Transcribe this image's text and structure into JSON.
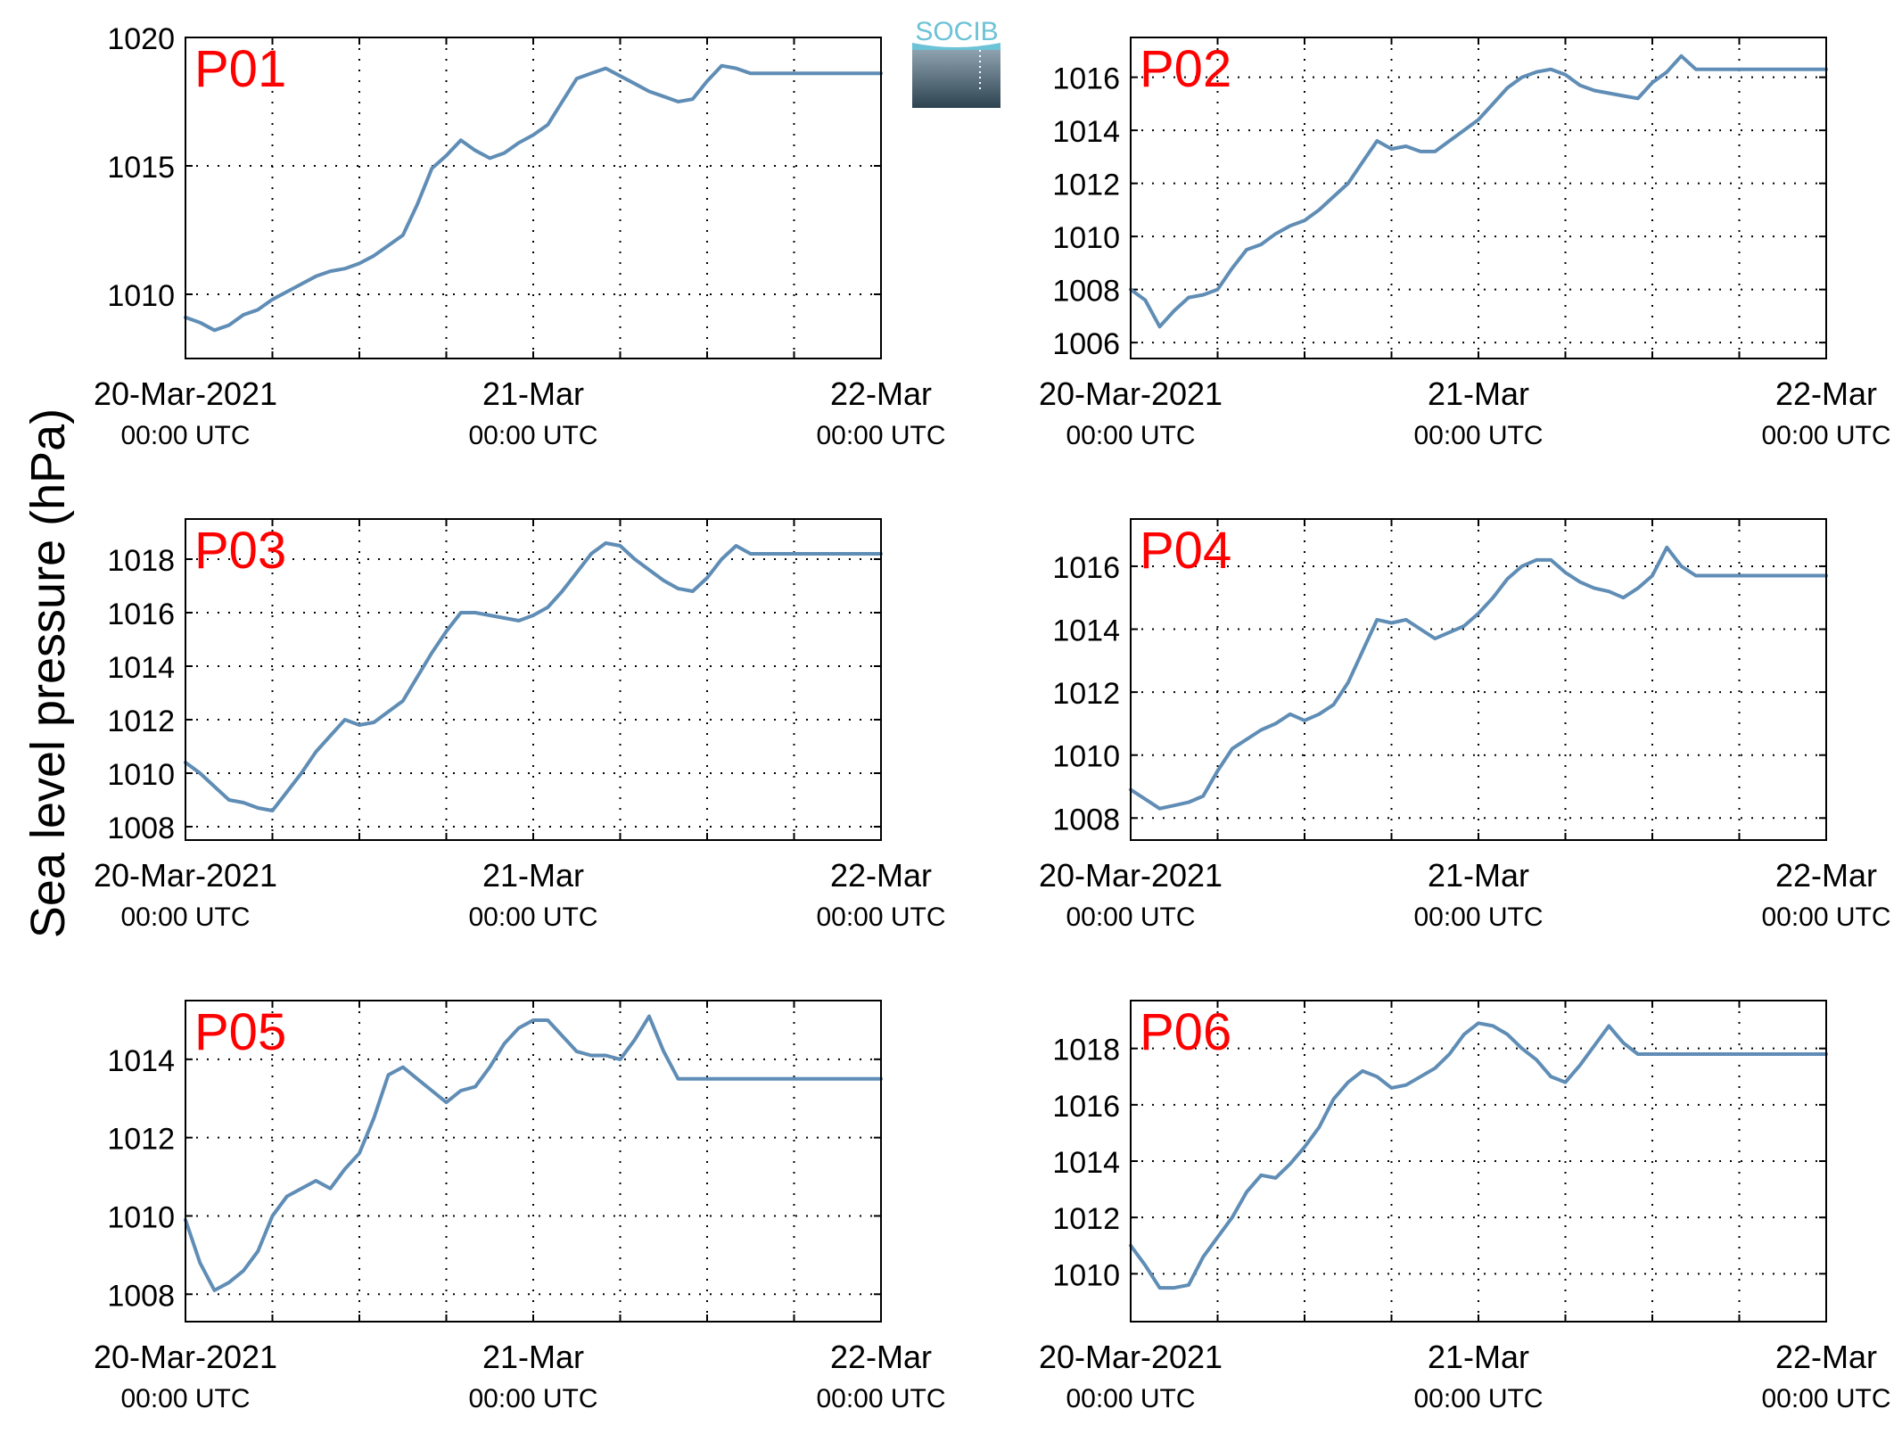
{
  "figure": {
    "ylabel": "Sea level pressure (hPa)",
    "logo_text": "SOCIB",
    "line_color": "#5f8db5",
    "label_color": "#ff0000"
  },
  "chart_data": [
    {
      "type": "line",
      "label": "P01",
      "grid": true,
      "xlim": [
        0,
        48
      ],
      "ylim": [
        1007.5,
        1020
      ],
      "yticks": [
        1010,
        1015,
        1020
      ],
      "xticks": [
        0,
        24,
        48
      ],
      "xtick_labels": [
        [
          "20-Mar-2021",
          "00:00 UTC"
        ],
        [
          "21-Mar",
          "00:00 UTC"
        ],
        [
          "22-Mar",
          "00:00 UTC"
        ]
      ],
      "x": [
        0,
        1,
        2,
        3,
        4,
        5,
        6,
        7,
        8,
        9,
        10,
        11,
        12,
        13,
        14,
        15,
        16,
        17,
        18,
        19,
        20,
        21,
        22,
        23,
        24,
        25,
        26,
        27,
        28,
        29,
        30,
        31,
        32,
        33,
        34,
        35,
        36,
        37,
        38,
        39,
        40,
        41,
        42,
        43,
        44,
        45,
        46,
        47,
        48
      ],
      "y": [
        1009.1,
        1008.9,
        1008.6,
        1008.8,
        1009.2,
        1009.4,
        1009.8,
        1010.1,
        1010.4,
        1010.7,
        1010.9,
        1011.0,
        1011.2,
        1011.5,
        1011.9,
        1012.3,
        1013.5,
        1014.9,
        1015.4,
        1016.0,
        1015.6,
        1015.3,
        1015.5,
        1015.9,
        1016.2,
        1016.6,
        1017.5,
        1018.4,
        1018.6,
        1018.8,
        1018.5,
        1018.2,
        1017.9,
        1017.7,
        1017.5,
        1017.6,
        1018.3,
        1018.9,
        1018.8,
        1018.6,
        1018.6,
        1018.6,
        1018.6,
        1018.6,
        1018.6,
        1018.6,
        1018.6,
        1018.6,
        1018.6
      ]
    },
    {
      "type": "line",
      "label": "P02",
      "grid": true,
      "xlim": [
        0,
        48
      ],
      "ylim": [
        1005.4,
        1017.5
      ],
      "yticks": [
        1006,
        1008,
        1010,
        1012,
        1014,
        1016
      ],
      "xticks": [
        0,
        24,
        48
      ],
      "xtick_labels": [
        [
          "20-Mar-2021",
          "00:00 UTC"
        ],
        [
          "21-Mar",
          "00:00 UTC"
        ],
        [
          "22-Mar",
          "00:00 UTC"
        ]
      ],
      "x": [
        0,
        1,
        2,
        3,
        4,
        5,
        6,
        7,
        8,
        9,
        10,
        11,
        12,
        13,
        14,
        15,
        16,
        17,
        18,
        19,
        20,
        21,
        22,
        23,
        24,
        25,
        26,
        27,
        28,
        29,
        30,
        31,
        32,
        33,
        34,
        35,
        36,
        37,
        38,
        39,
        40,
        41,
        42,
        43,
        44,
        45,
        46,
        47,
        48
      ],
      "y": [
        1008.0,
        1007.6,
        1006.6,
        1007.2,
        1007.7,
        1007.8,
        1008.0,
        1008.8,
        1009.5,
        1009.7,
        1010.1,
        1010.4,
        1010.6,
        1011.0,
        1011.5,
        1012.0,
        1012.8,
        1013.6,
        1013.3,
        1013.4,
        1013.2,
        1013.2,
        1013.6,
        1014.0,
        1014.4,
        1015.0,
        1015.6,
        1016.0,
        1016.2,
        1016.3,
        1016.1,
        1015.7,
        1015.5,
        1015.4,
        1015.3,
        1015.2,
        1015.8,
        1016.2,
        1016.8,
        1016.3,
        1016.3,
        1016.3,
        1016.3,
        1016.3,
        1016.3,
        1016.3,
        1016.3,
        1016.3,
        1016.3
      ]
    },
    {
      "type": "line",
      "label": "P03",
      "grid": true,
      "xlim": [
        0,
        48
      ],
      "ylim": [
        1007.5,
        1019.5
      ],
      "yticks": [
        1008,
        1010,
        1012,
        1014,
        1016,
        1018
      ],
      "xticks": [
        0,
        24,
        48
      ],
      "xtick_labels": [
        [
          "20-Mar-2021",
          "00:00 UTC"
        ],
        [
          "21-Mar",
          "00:00 UTC"
        ],
        [
          "22-Mar",
          "00:00 UTC"
        ]
      ],
      "x": [
        0,
        1,
        2,
        3,
        4,
        5,
        6,
        7,
        8,
        9,
        10,
        11,
        12,
        13,
        14,
        15,
        16,
        17,
        18,
        19,
        20,
        21,
        22,
        23,
        24,
        25,
        26,
        27,
        28,
        29,
        30,
        31,
        32,
        33,
        34,
        35,
        36,
        37,
        38,
        39,
        40,
        41,
        42,
        43,
        44,
        45,
        46,
        47,
        48
      ],
      "y": [
        1010.4,
        1010.0,
        1009.5,
        1009.0,
        1008.9,
        1008.7,
        1008.6,
        1009.3,
        1010.0,
        1010.8,
        1011.4,
        1012.0,
        1011.8,
        1011.9,
        1012.3,
        1012.7,
        1013.6,
        1014.5,
        1015.3,
        1016.0,
        1016.0,
        1015.9,
        1015.8,
        1015.7,
        1015.9,
        1016.2,
        1016.8,
        1017.5,
        1018.2,
        1018.6,
        1018.5,
        1018.0,
        1017.6,
        1017.2,
        1016.9,
        1016.8,
        1017.3,
        1018.0,
        1018.5,
        1018.2,
        1018.2,
        1018.2,
        1018.2,
        1018.2,
        1018.2,
        1018.2,
        1018.2,
        1018.2,
        1018.2
      ]
    },
    {
      "type": "line",
      "label": "P04",
      "grid": true,
      "xlim": [
        0,
        48
      ],
      "ylim": [
        1007.3,
        1017.5
      ],
      "yticks": [
        1008,
        1010,
        1012,
        1014,
        1016
      ],
      "xticks": [
        0,
        24,
        48
      ],
      "xtick_labels": [
        [
          "20-Mar-2021",
          "00:00 UTC"
        ],
        [
          "21-Mar",
          "00:00 UTC"
        ],
        [
          "22-Mar",
          "00:00 UTC"
        ]
      ],
      "x": [
        0,
        1,
        2,
        3,
        4,
        5,
        6,
        7,
        8,
        9,
        10,
        11,
        12,
        13,
        14,
        15,
        16,
        17,
        18,
        19,
        20,
        21,
        22,
        23,
        24,
        25,
        26,
        27,
        28,
        29,
        30,
        31,
        32,
        33,
        34,
        35,
        36,
        37,
        38,
        39,
        40,
        41,
        42,
        43,
        44,
        45,
        46,
        47,
        48
      ],
      "y": [
        1008.9,
        1008.6,
        1008.3,
        1008.4,
        1008.5,
        1008.7,
        1009.5,
        1010.2,
        1010.5,
        1010.8,
        1011.0,
        1011.3,
        1011.1,
        1011.3,
        1011.6,
        1012.3,
        1013.3,
        1014.3,
        1014.2,
        1014.3,
        1014.0,
        1013.7,
        1013.9,
        1014.1,
        1014.5,
        1015.0,
        1015.6,
        1016.0,
        1016.2,
        1016.2,
        1015.8,
        1015.5,
        1015.3,
        1015.2,
        1015.0,
        1015.3,
        1015.7,
        1016.6,
        1016.0,
        1015.7,
        1015.7,
        1015.7,
        1015.7,
        1015.7,
        1015.7,
        1015.7,
        1015.7,
        1015.7,
        1015.7
      ]
    },
    {
      "type": "line",
      "label": "P05",
      "grid": true,
      "xlim": [
        0,
        48
      ],
      "ylim": [
        1007.3,
        1015.5
      ],
      "yticks": [
        1008,
        1010,
        1012,
        1014
      ],
      "xticks": [
        0,
        24,
        48
      ],
      "xtick_labels": [
        [
          "20-Mar-2021",
          "00:00 UTC"
        ],
        [
          "21-Mar",
          "00:00 UTC"
        ],
        [
          "22-Mar",
          "00:00 UTC"
        ]
      ],
      "x": [
        0,
        1,
        2,
        3,
        4,
        5,
        6,
        7,
        8,
        9,
        10,
        11,
        12,
        13,
        14,
        15,
        16,
        17,
        18,
        19,
        20,
        21,
        22,
        23,
        24,
        25,
        26,
        27,
        28,
        29,
        30,
        31,
        32,
        33,
        34,
        35,
        36,
        37,
        38,
        39,
        40,
        41,
        42,
        43,
        44,
        45,
        46,
        47,
        48
      ],
      "y": [
        1009.9,
        1008.8,
        1008.1,
        1008.3,
        1008.6,
        1009.1,
        1010.0,
        1010.5,
        1010.7,
        1010.9,
        1010.7,
        1011.2,
        1011.6,
        1012.5,
        1013.6,
        1013.8,
        1013.5,
        1013.2,
        1012.9,
        1013.2,
        1013.3,
        1013.8,
        1014.4,
        1014.8,
        1015.0,
        1015.0,
        1014.6,
        1014.2,
        1014.1,
        1014.1,
        1014.0,
        1014.5,
        1015.1,
        1014.2,
        1013.5,
        1013.5,
        1013.5,
        1013.5,
        1013.5,
        1013.5,
        1013.5,
        1013.5,
        1013.5,
        1013.5,
        1013.5,
        1013.5,
        1013.5,
        1013.5,
        1013.5
      ]
    },
    {
      "type": "line",
      "label": "P06",
      "grid": true,
      "xlim": [
        0,
        48
      ],
      "ylim": [
        1008.3,
        1019.7
      ],
      "yticks": [
        1010,
        1012,
        1014,
        1016,
        1018
      ],
      "xticks": [
        0,
        24,
        48
      ],
      "xtick_labels": [
        [
          "20-Mar-2021",
          "00:00 UTC"
        ],
        [
          "21-Mar",
          "00:00 UTC"
        ],
        [
          "22-Mar",
          "00:00 UTC"
        ]
      ],
      "x": [
        0,
        1,
        2,
        3,
        4,
        5,
        6,
        7,
        8,
        9,
        10,
        11,
        12,
        13,
        14,
        15,
        16,
        17,
        18,
        19,
        20,
        21,
        22,
        23,
        24,
        25,
        26,
        27,
        28,
        29,
        30,
        31,
        32,
        33,
        34,
        35,
        36,
        37,
        38,
        39,
        40,
        41,
        42,
        43,
        44,
        45,
        46,
        47,
        48
      ],
      "y": [
        1011.0,
        1010.3,
        1009.5,
        1009.5,
        1009.6,
        1010.6,
        1011.3,
        1012.0,
        1012.9,
        1013.5,
        1013.4,
        1013.9,
        1014.5,
        1015.2,
        1016.2,
        1016.8,
        1017.2,
        1017.0,
        1016.6,
        1016.7,
        1017.0,
        1017.3,
        1017.8,
        1018.5,
        1018.9,
        1018.8,
        1018.5,
        1018.0,
        1017.6,
        1017.0,
        1016.8,
        1017.4,
        1018.1,
        1018.8,
        1018.2,
        1017.8,
        1017.8,
        1017.8,
        1017.8,
        1017.8,
        1017.8,
        1017.8,
        1017.8,
        1017.8,
        1017.8,
        1017.8,
        1017.8,
        1017.8,
        1017.8
      ]
    }
  ]
}
